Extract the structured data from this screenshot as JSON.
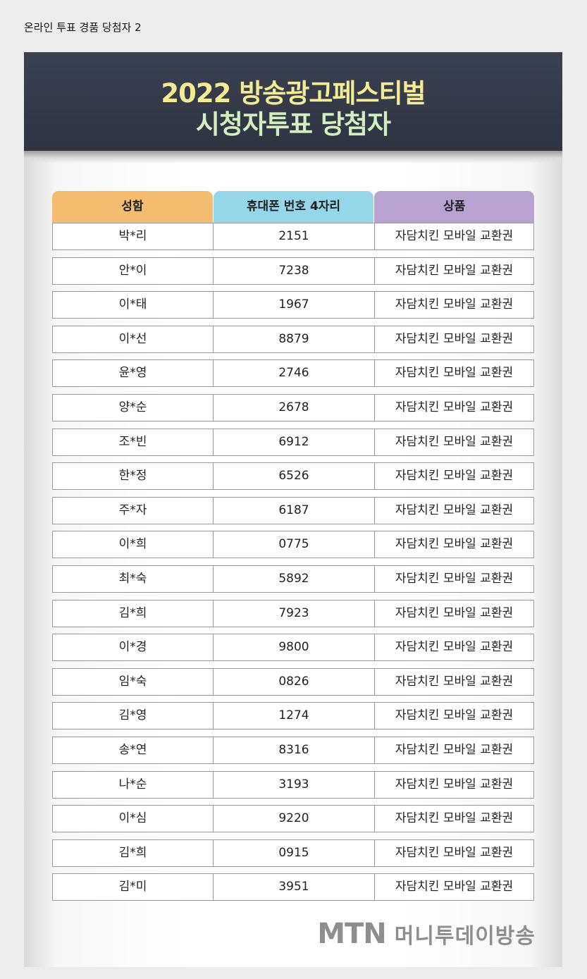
{
  "page_label": "온라인 투표 경품 당첨자 2",
  "banner": {
    "title_line1": "2022 방송광고페스티벌",
    "title_line2": "시청자투표 당첨자"
  },
  "table": {
    "headers": [
      "성함",
      "휴대폰 번호 4자리",
      "상품"
    ],
    "rows": [
      {
        "name": "박*리",
        "phone": "2151",
        "prize": "자담치킨 모바일 교환권"
      },
      {
        "name": "안*이",
        "phone": "7238",
        "prize": "자담치킨 모바일 교환권"
      },
      {
        "name": "이*태",
        "phone": "1967",
        "prize": "자담치킨 모바일 교환권"
      },
      {
        "name": "이*선",
        "phone": "8879",
        "prize": "자담치킨 모바일 교환권"
      },
      {
        "name": "윤*영",
        "phone": "2746",
        "prize": "자담치킨 모바일 교환권"
      },
      {
        "name": "양*순",
        "phone": "2678",
        "prize": "자담치킨 모바일 교환권"
      },
      {
        "name": "조*빈",
        "phone": "6912",
        "prize": "자담치킨 모바일 교환권"
      },
      {
        "name": "한*정",
        "phone": "6526",
        "prize": "자담치킨 모바일 교환권"
      },
      {
        "name": "주*자",
        "phone": "6187",
        "prize": "자담치킨 모바일 교환권"
      },
      {
        "name": "이*희",
        "phone": "0775",
        "prize": "자담치킨 모바일 교환권"
      },
      {
        "name": "최*숙",
        "phone": "5892",
        "prize": "자담치킨 모바일 교환권"
      },
      {
        "name": "김*희",
        "phone": "7923",
        "prize": "자담치킨 모바일 교환권"
      },
      {
        "name": "이*경",
        "phone": "9800",
        "prize": "자담치킨 모바일 교환권"
      },
      {
        "name": "임*숙",
        "phone": "0826",
        "prize": "자담치킨 모바일 교환권"
      },
      {
        "name": "김*영",
        "phone": "1274",
        "prize": "자담치킨 모바일 교환권"
      },
      {
        "name": "송*연",
        "phone": "8316",
        "prize": "자담치킨 모바일 교환권"
      },
      {
        "name": "나*순",
        "phone": "3193",
        "prize": "자담치킨 모바일 교환권"
      },
      {
        "name": "이*심",
        "phone": "9220",
        "prize": "자담치킨 모바일 교환권"
      },
      {
        "name": "김*희",
        "phone": "0915",
        "prize": "자담치킨 모바일 교환권"
      },
      {
        "name": "김*미",
        "phone": "3951",
        "prize": "자담치킨 모바일 교환권"
      }
    ]
  },
  "brand": {
    "logo_text": "MTN",
    "name": "머니투데이방송"
  },
  "colors": {
    "banner_bg": "#2f3442",
    "title_line1": "#f4eb94",
    "title_line2": "#d2efc0",
    "header_name": "#f3bc70",
    "header_phone": "#95d7e9",
    "header_prize": "#b7a2d2"
  }
}
